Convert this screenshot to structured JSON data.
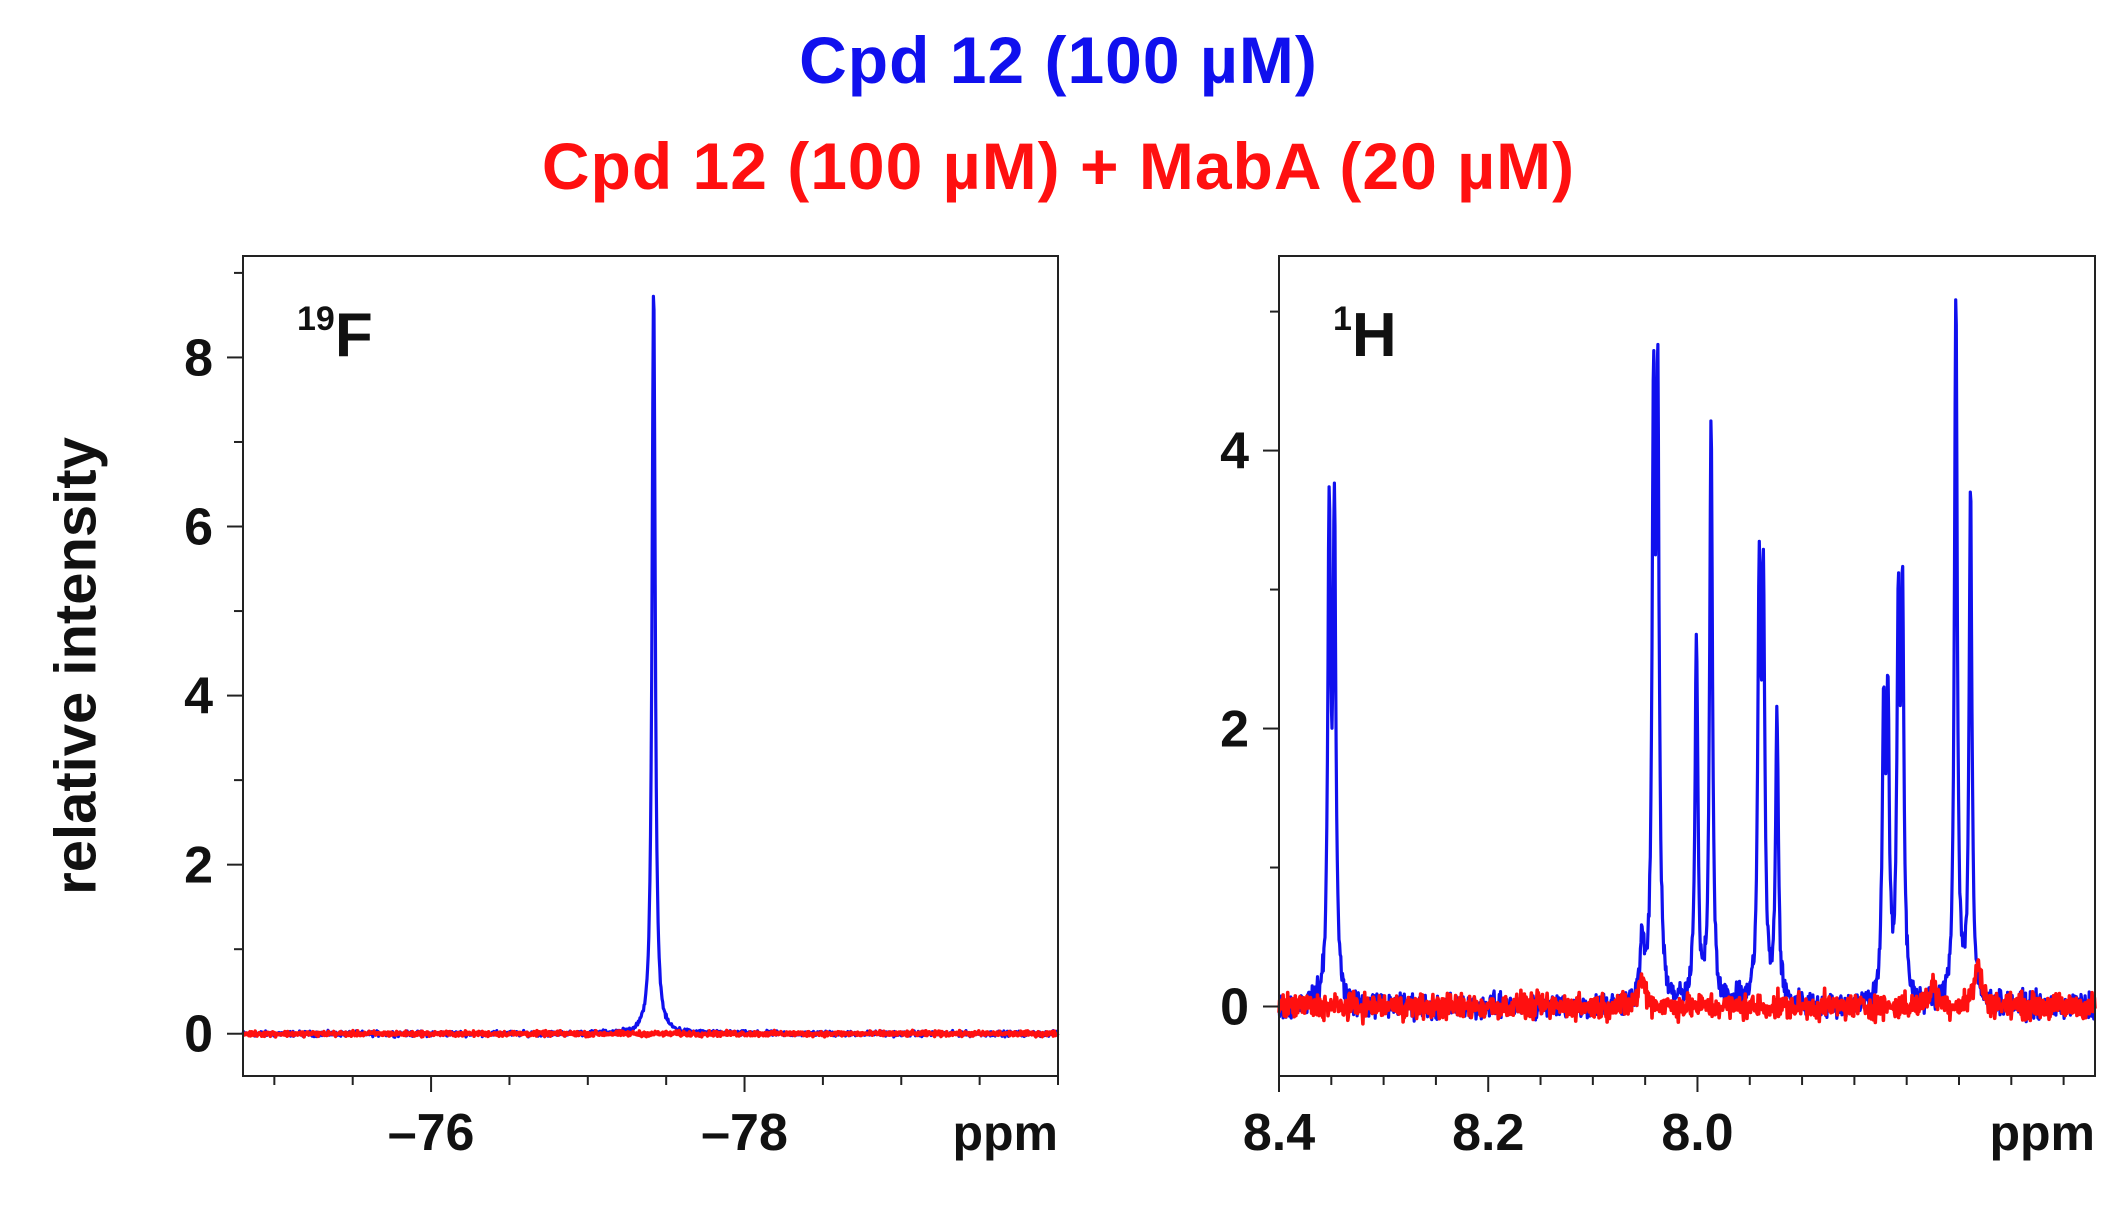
{
  "legend": {
    "series_a": "Cpd 12 (100 µM)",
    "series_b": "Cpd 12 (100 µM) + MabA (20 µM)",
    "color_a": "#1010ee",
    "color_b": "#ff1010"
  },
  "ylabel": "relative intensity",
  "chart_data": [
    {
      "type": "line",
      "panel": "19F",
      "nucleus_mass": "19",
      "nucleus_symbol": "F",
      "xlabel": "ppm",
      "xlim": [
        -74.8,
        -80.0
      ],
      "xticks": [
        -76,
        -78
      ],
      "xtick_labels": [
        "–76",
        "–78"
      ],
      "xtick_minor_step": 0.5,
      "ylim": [
        -0.5,
        9.2
      ],
      "yticks": [
        0,
        2,
        4,
        6,
        8
      ],
      "ytick_labels": [
        "0",
        "2",
        "4",
        "6",
        "8"
      ],
      "ytick_minor_step": 1,
      "series": [
        {
          "name": "Cpd 12 (100 µM)",
          "color": "#1010ee",
          "baseline": 0.0,
          "noise": 0.03,
          "peaks": [
            {
              "x": -77.42,
              "height": 8.85,
              "width": 0.012
            }
          ]
        },
        {
          "name": "Cpd 12 (100 µM) + MabA (20 µM)",
          "color": "#ff1010",
          "baseline": 0.0,
          "noise": 0.03,
          "peaks": []
        }
      ]
    },
    {
      "type": "line",
      "panel": "1H",
      "nucleus_mass": "1",
      "nucleus_symbol": "H",
      "xlabel": "ppm",
      "xlim": [
        8.4,
        7.62
      ],
      "xticks": [
        8.4,
        8.2,
        8.0
      ],
      "xtick_labels": [
        "8.4",
        "8.2",
        "8.0"
      ],
      "xtick_minor_step": 0.05,
      "ylim": [
        -0.5,
        5.4
      ],
      "yticks": [
        0,
        2,
        4
      ],
      "ytick_labels": [
        "0",
        "2",
        "4"
      ],
      "ytick_minor_step": 1,
      "series": [
        {
          "name": "Cpd 12 (100 µM)",
          "color": "#1010ee",
          "baseline": 0.0,
          "noise": 0.09,
          "peaks": [
            {
              "x": 8.352,
              "height": 3.45,
              "width": 0.0016
            },
            {
              "x": 8.347,
              "height": 3.5,
              "width": 0.0016
            },
            {
              "x": 8.053,
              "height": 0.45,
              "width": 0.002
            },
            {
              "x": 8.042,
              "height": 4.1,
              "width": 0.0016
            },
            {
              "x": 8.038,
              "height": 4.25,
              "width": 0.0016
            },
            {
              "x": 8.001,
              "height": 2.6,
              "width": 0.0016
            },
            {
              "x": 7.987,
              "height": 4.25,
              "width": 0.0016
            },
            {
              "x": 7.941,
              "height": 2.9,
              "width": 0.0016
            },
            {
              "x": 7.937,
              "height": 2.9,
              "width": 0.0016
            },
            {
              "x": 7.924,
              "height": 2.1,
              "width": 0.0016
            },
            {
              "x": 7.822,
              "height": 2.05,
              "width": 0.0016
            },
            {
              "x": 7.818,
              "height": 2.05,
              "width": 0.0016
            },
            {
              "x": 7.808,
              "height": 2.6,
              "width": 0.0016
            },
            {
              "x": 7.804,
              "height": 2.8,
              "width": 0.0016
            },
            {
              "x": 7.753,
              "height": 5.15,
              "width": 0.0016
            },
            {
              "x": 7.739,
              "height": 3.7,
              "width": 0.0016
            }
          ]
        },
        {
          "name": "Cpd 12 (100 µM) + MabA (20 µM)",
          "color": "#ff1010",
          "baseline": 0.0,
          "noise": 0.09,
          "peaks": [
            {
              "x": 8.053,
              "height": 0.2,
              "width": 0.004
            },
            {
              "x": 7.775,
              "height": 0.15,
              "width": 0.004
            },
            {
              "x": 7.732,
              "height": 0.3,
              "width": 0.004
            }
          ]
        }
      ]
    }
  ]
}
